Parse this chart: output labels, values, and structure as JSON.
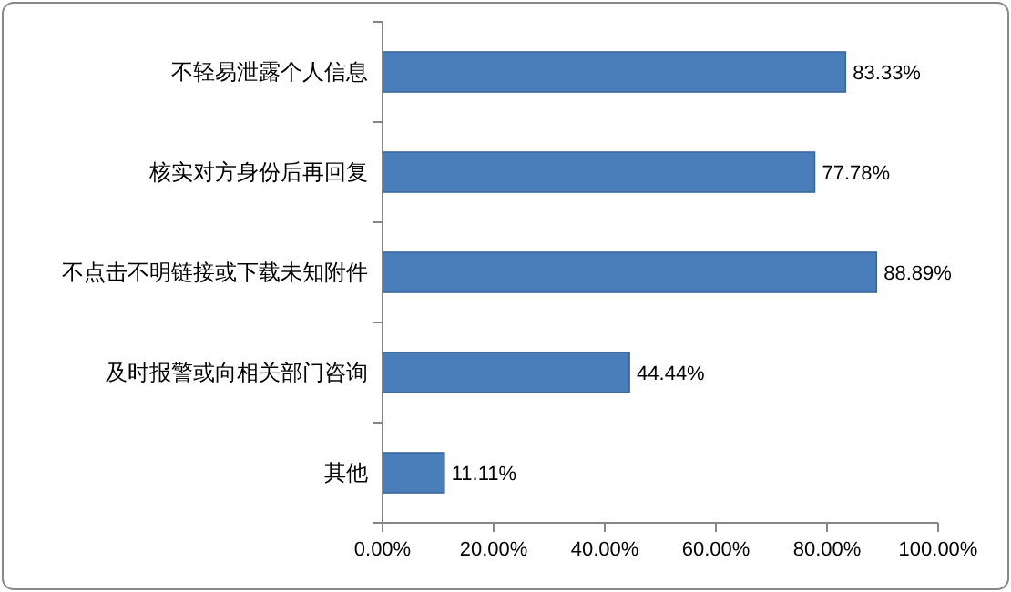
{
  "chart_data": {
    "type": "bar",
    "orientation": "horizontal",
    "categories": [
      "不轻易泄露个人信息",
      "核实对方身份后再回复",
      "不点击不明链接或下载未知附件",
      "及时报警或向相关部门咨询",
      "其他"
    ],
    "values": [
      83.33,
      77.78,
      88.89,
      44.44,
      11.11
    ],
    "value_labels": [
      "83.33%",
      "77.78%",
      "88.89%",
      "44.44%",
      "11.11%"
    ],
    "color": "#4a7ebb",
    "xlim": [
      0,
      100
    ],
    "xticks": [
      {
        "value": 0,
        "label": "0.00%"
      },
      {
        "value": 20,
        "label": "20.00%"
      },
      {
        "value": 40,
        "label": "40.00%"
      },
      {
        "value": 60,
        "label": "60.00%"
      },
      {
        "value": 80,
        "label": "80.00%"
      },
      {
        "value": 100,
        "label": "100.00%"
      }
    ],
    "grid": false
  }
}
